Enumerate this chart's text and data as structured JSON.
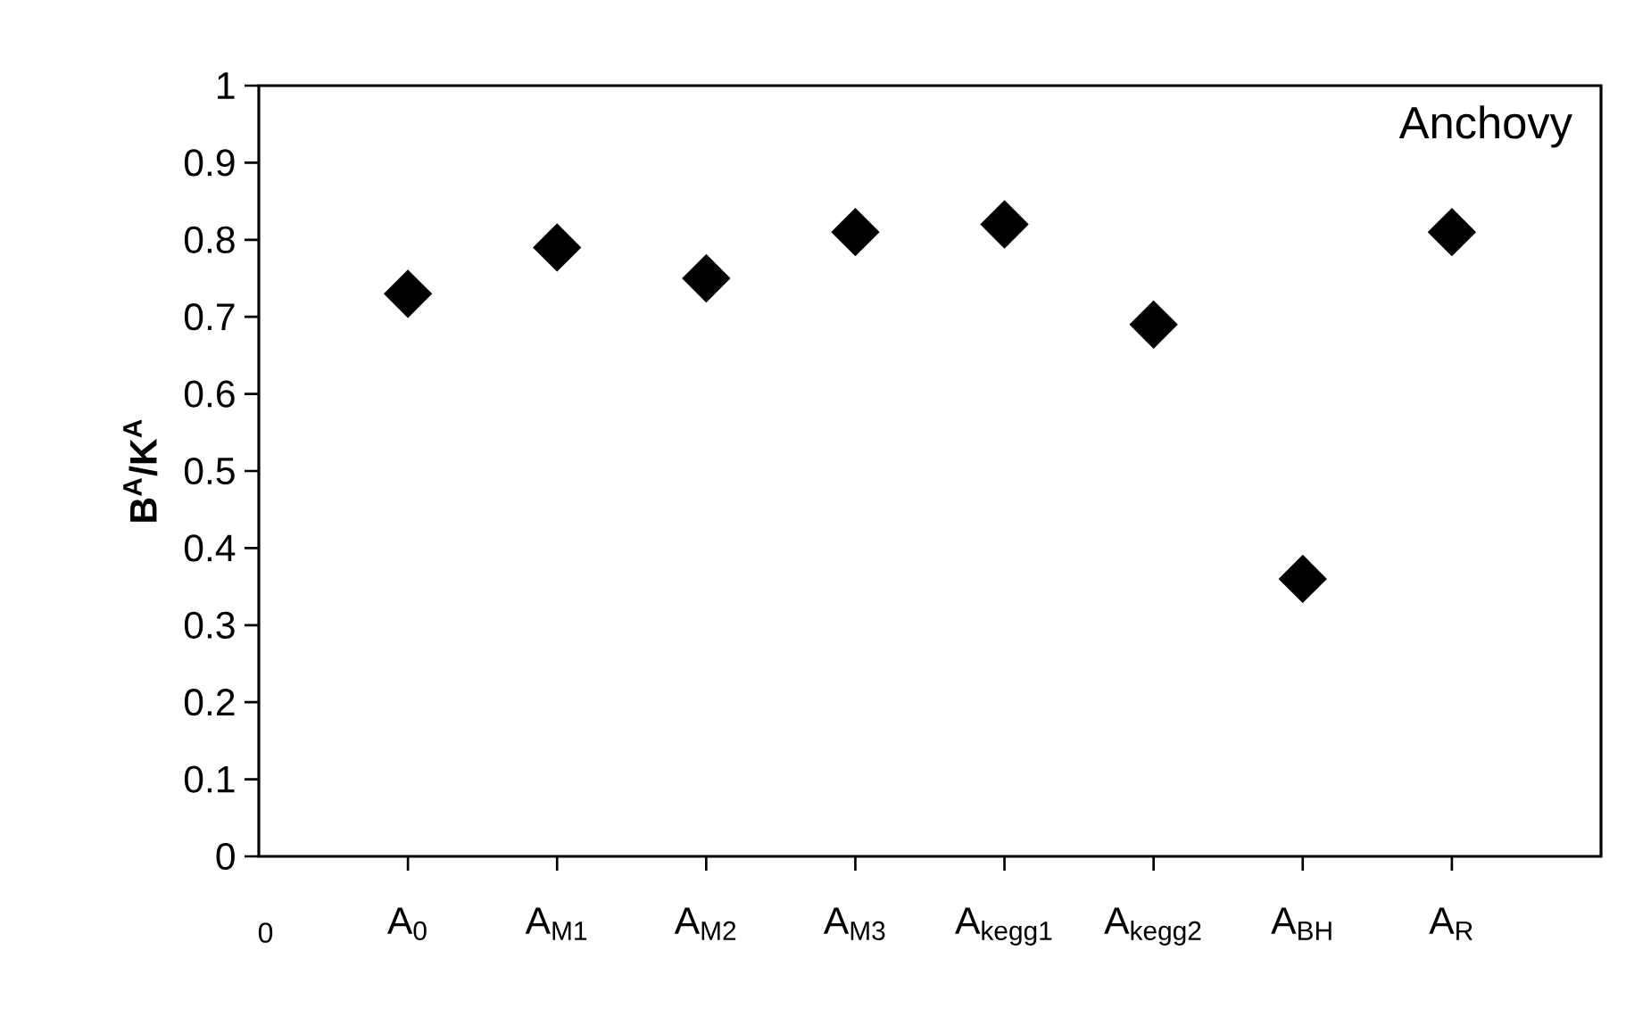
{
  "chart_data": {
    "type": "scatter",
    "ylabel": "**B$^{A}$/K$^{A}$**",
    "categories": [
      "A$_{0}$",
      "A$_{M1}$",
      "A$_{M2}$",
      "A$_{M3}$",
      "A$_{kegg1}$",
      "A$_{kegg2}$",
      "A$_{BH}$",
      "A$_{R}$"
    ],
    "values": [
      0.73,
      0.79,
      0.75,
      0.81,
      0.82,
      0.69,
      0.36,
      0.81
    ],
    "color": "#000000",
    "marker": "diamond",
    "ylim": [
      0,
      1
    ],
    "yticks": [
      0,
      0.1,
      0.2,
      0.3,
      0.4,
      0.5,
      0.6,
      0.7,
      0.8,
      0.9,
      1
    ],
    "annotations": [
      "Anchovy",
      "0"
    ]
  }
}
